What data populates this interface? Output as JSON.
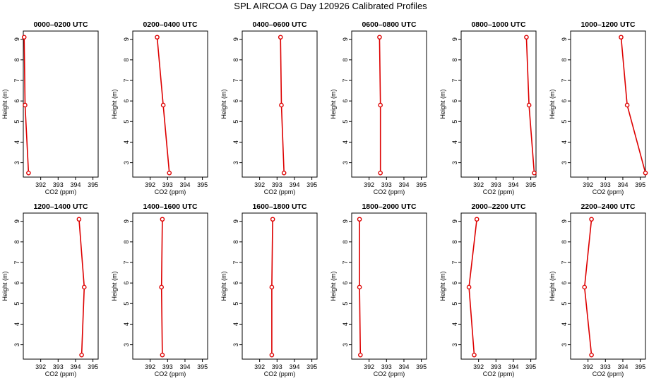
{
  "title": "SPL AIRCOA G  Day 120926  Calibrated Profiles",
  "line_color": "#dd0000",
  "chart_data": [
    {
      "type": "line",
      "title": "0000–0200 UTC",
      "xlabel": "CO2 (ppm)",
      "ylabel": "Height (m)",
      "xlim": [
        391,
        395.3
      ],
      "ylim": [
        2.3,
        9.4
      ],
      "xticks": [
        392,
        393,
        394,
        395
      ],
      "yticks": [
        3,
        4,
        5,
        6,
        7,
        8,
        9
      ],
      "series": [
        {
          "x": [
            391.05,
            391.1,
            391.3
          ],
          "y": [
            9.1,
            5.8,
            2.5
          ]
        }
      ]
    },
    {
      "type": "line",
      "title": "0200–0400 UTC",
      "xlabel": "CO2 (ppm)",
      "ylabel": "Height (m)",
      "xlim": [
        391,
        395.3
      ],
      "ylim": [
        2.3,
        9.4
      ],
      "xticks": [
        392,
        393,
        394,
        395
      ],
      "yticks": [
        3,
        4,
        5,
        6,
        7,
        8,
        9
      ],
      "series": [
        {
          "x": [
            392.4,
            392.75,
            393.1
          ],
          "y": [
            9.1,
            5.8,
            2.5
          ]
        }
      ]
    },
    {
      "type": "line",
      "title": "0400–0600 UTC",
      "xlabel": "CO2 (ppm)",
      "ylabel": "Height (m)",
      "xlim": [
        391,
        395.3
      ],
      "ylim": [
        2.3,
        9.4
      ],
      "xticks": [
        392,
        393,
        394,
        395
      ],
      "yticks": [
        3,
        4,
        5,
        6,
        7,
        8,
        9
      ],
      "series": [
        {
          "x": [
            393.2,
            393.25,
            393.4
          ],
          "y": [
            9.1,
            5.8,
            2.5
          ]
        }
      ]
    },
    {
      "type": "line",
      "title": "0600–0800 UTC",
      "xlabel": "CO2 (ppm)",
      "ylabel": "Height (m)",
      "xlim": [
        391,
        395.3
      ],
      "ylim": [
        2.3,
        9.4
      ],
      "xticks": [
        392,
        393,
        394,
        395
      ],
      "yticks": [
        3,
        4,
        5,
        6,
        7,
        8,
        9
      ],
      "series": [
        {
          "x": [
            392.6,
            392.65,
            392.65
          ],
          "y": [
            9.1,
            5.8,
            2.5
          ]
        }
      ]
    },
    {
      "type": "line",
      "title": "0800–1000 UTC",
      "xlabel": "CO2 (ppm)",
      "ylabel": "Height (m)",
      "xlim": [
        391,
        395.3
      ],
      "ylim": [
        2.3,
        9.4
      ],
      "xticks": [
        392,
        393,
        394,
        395
      ],
      "yticks": [
        3,
        4,
        5,
        6,
        7,
        8,
        9
      ],
      "series": [
        {
          "x": [
            394.75,
            394.9,
            395.2
          ],
          "y": [
            9.1,
            5.8,
            2.5
          ]
        }
      ]
    },
    {
      "type": "line",
      "title": "1000–1200 UTC",
      "xlabel": "CO2 (ppm)",
      "ylabel": "Height (m)",
      "xlim": [
        391,
        395.3
      ],
      "ylim": [
        2.3,
        9.4
      ],
      "xticks": [
        392,
        393,
        394,
        395
      ],
      "yticks": [
        3,
        4,
        5,
        6,
        7,
        8,
        9
      ],
      "series": [
        {
          "x": [
            393.9,
            394.25,
            395.3
          ],
          "y": [
            9.1,
            5.8,
            2.5
          ]
        }
      ]
    },
    {
      "type": "line",
      "title": "1200–1400 UTC",
      "xlabel": "CO2 (ppm)",
      "ylabel": "Height (m)",
      "xlim": [
        391,
        395.3
      ],
      "ylim": [
        2.3,
        9.4
      ],
      "xticks": [
        392,
        393,
        394,
        395
      ],
      "yticks": [
        3,
        4,
        5,
        6,
        7,
        8,
        9
      ],
      "series": [
        {
          "x": [
            394.2,
            394.5,
            394.35
          ],
          "y": [
            9.1,
            5.8,
            2.5
          ]
        }
      ]
    },
    {
      "type": "line",
      "title": "1400–1600 UTC",
      "xlabel": "CO2 (ppm)",
      "ylabel": "Height (m)",
      "xlim": [
        391,
        395.3
      ],
      "ylim": [
        2.3,
        9.4
      ],
      "xticks": [
        392,
        393,
        394,
        395
      ],
      "yticks": [
        3,
        4,
        5,
        6,
        7,
        8,
        9
      ],
      "series": [
        {
          "x": [
            392.7,
            392.65,
            392.7
          ],
          "y": [
            9.1,
            5.8,
            2.5
          ]
        }
      ]
    },
    {
      "type": "line",
      "title": "1600–1800 UTC",
      "xlabel": "CO2 (ppm)",
      "ylabel": "Height (m)",
      "xlim": [
        391,
        395.3
      ],
      "ylim": [
        2.3,
        9.4
      ],
      "xticks": [
        392,
        393,
        394,
        395
      ],
      "yticks": [
        3,
        4,
        5,
        6,
        7,
        8,
        9
      ],
      "series": [
        {
          "x": [
            392.75,
            392.7,
            392.7
          ],
          "y": [
            9.1,
            5.8,
            2.5
          ]
        }
      ]
    },
    {
      "type": "line",
      "title": "1800–2000 UTC",
      "xlabel": "CO2 (ppm)",
      "ylabel": "Height (m)",
      "xlim": [
        391,
        395.3
      ],
      "ylim": [
        2.3,
        9.4
      ],
      "xticks": [
        392,
        393,
        394,
        395
      ],
      "yticks": [
        3,
        4,
        5,
        6,
        7,
        8,
        9
      ],
      "series": [
        {
          "x": [
            391.45,
            391.45,
            391.5
          ],
          "y": [
            9.1,
            5.8,
            2.5
          ]
        }
      ]
    },
    {
      "type": "line",
      "title": "2000–2200 UTC",
      "xlabel": "CO2 (ppm)",
      "ylabel": "Height (m)",
      "xlim": [
        391,
        395.3
      ],
      "ylim": [
        2.3,
        9.4
      ],
      "xticks": [
        392,
        393,
        394,
        395
      ],
      "yticks": [
        3,
        4,
        5,
        6,
        7,
        8,
        9
      ],
      "series": [
        {
          "x": [
            391.9,
            391.45,
            391.75
          ],
          "y": [
            9.1,
            5.8,
            2.5
          ]
        }
      ]
    },
    {
      "type": "line",
      "title": "2200–2400 UTC",
      "xlabel": "CO2 (ppm)",
      "ylabel": "Height (m)",
      "xlim": [
        391,
        395.3
      ],
      "ylim": [
        2.3,
        9.4
      ],
      "xticks": [
        392,
        393,
        394,
        395
      ],
      "yticks": [
        3,
        4,
        5,
        6,
        7,
        8,
        9
      ],
      "series": [
        {
          "x": [
            392.2,
            391.8,
            392.2
          ],
          "y": [
            9.1,
            5.8,
            2.5
          ]
        }
      ]
    }
  ]
}
